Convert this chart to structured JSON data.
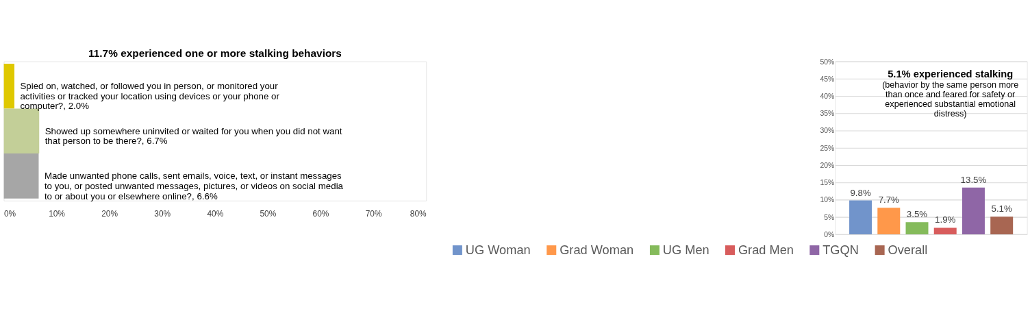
{
  "chart_data": [
    {
      "type": "bar",
      "orientation": "horizontal",
      "title": "11.7% experienced one or more stalking behaviors",
      "categories": [
        null,
        null,
        null
      ],
      "values": [
        2.0,
        6.7,
        6.6
      ],
      "colors": [
        "#dfc800",
        "#c3cf98",
        "#a6a6a6"
      ],
      "value_labels": [
        "Spied on, watched, or followed you in person, or monitored your activities or tracked your location using devices or your phone or computer?, 2.0%",
        "Showed up somewhere uninvited or waited for you when you did not want that person to be there?, 6.7%",
        "Made unwanted phone calls, sent emails, voice, text, or instant messages to you, or posted unwanted messages, pictures, or videos on social media to or about you or elsewhere online?, 6.6%"
      ],
      "xlim": [
        0,
        80
      ],
      "xticks": [
        {
          "value": 0,
          "label": "0%"
        },
        {
          "value": 10,
          "label": "10%"
        },
        {
          "value": 20,
          "label": "20%"
        },
        {
          "value": 30,
          "label": "30%"
        },
        {
          "value": 40,
          "label": "40%"
        },
        {
          "value": 50,
          "label": "50%"
        },
        {
          "value": 60,
          "label": "60%"
        },
        {
          "value": 70,
          "label": "70%"
        },
        {
          "value": 80,
          "label": "80%"
        }
      ],
      "grid": false,
      "legend": false
    },
    {
      "type": "bar",
      "title": "5.1% experienced stalking",
      "subtitle": "(behavior by the same person more than once and feared for safety or experienced substantial emotional distress)",
      "categories": [
        null,
        null,
        null,
        null,
        null,
        null
      ],
      "series": [
        {
          "name": "UG Woman",
          "color": "#7194cb",
          "values": [
            9.8,
            null,
            null,
            null,
            null,
            null
          ]
        },
        {
          "name": "Grad Woman",
          "color": "#ff984a",
          "values": [
            null,
            7.7,
            null,
            null,
            null,
            null
          ]
        },
        {
          "name": "UG Men",
          "color": "#85bb5b",
          "values": [
            null,
            null,
            3.5,
            null,
            null,
            null
          ]
        },
        {
          "name": "Grad Men",
          "color": "#d85c5c",
          "values": [
            null,
            null,
            null,
            1.9,
            null,
            null
          ]
        },
        {
          "name": "TGQN",
          "color": "#8f66a6",
          "values": [
            null,
            null,
            null,
            null,
            13.5,
            null
          ]
        },
        {
          "name": "Overall",
          "color": "#a86652",
          "values": [
            null,
            null,
            null,
            null,
            null,
            5.1
          ]
        }
      ],
      "value_labels": [
        "9.8%",
        "7.7%",
        "3.5%",
        "1.9%",
        "13.5%",
        "5.1%"
      ],
      "ylim": [
        0,
        50
      ],
      "yticks": [
        {
          "value": 0,
          "label": "0%"
        },
        {
          "value": 5,
          "label": "5%"
        },
        {
          "value": 10,
          "label": "10%"
        },
        {
          "value": 15,
          "label": "15%"
        },
        {
          "value": 20,
          "label": "20%"
        },
        {
          "value": 25,
          "label": "25%"
        },
        {
          "value": 30,
          "label": "30%"
        },
        {
          "value": 35,
          "label": "35%"
        },
        {
          "value": 40,
          "label": "40%"
        },
        {
          "value": 45,
          "label": "45%"
        },
        {
          "value": 50,
          "label": "50%"
        }
      ],
      "grid": "y",
      "legend": "bottom"
    }
  ]
}
